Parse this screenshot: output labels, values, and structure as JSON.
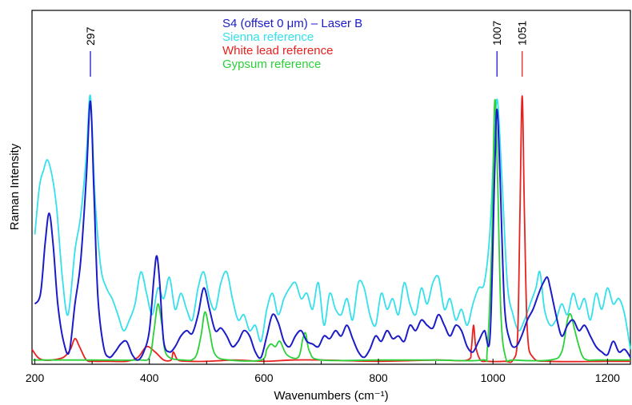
{
  "chart_data": {
    "type": "line",
    "title": "",
    "xlabel": "Wavenumbers (cm⁻¹)",
    "ylabel": "Raman Intensity",
    "xlim": [
      195,
      1240
    ],
    "ylim": [
      0,
      1.06
    ],
    "x_ticks": [
      200,
      400,
      600,
      800,
      1000,
      1200
    ],
    "grid": false,
    "legend_position": "top-center",
    "series": [
      {
        "name": "Sienna reference",
        "color": "#33e0ec",
        "x": [
          200,
          208,
          215,
          222,
          230,
          238,
          248,
          258,
          270,
          280,
          290,
          297,
          305,
          315,
          325,
          335,
          345,
          355,
          365,
          375,
          385,
          395,
          405,
          415,
          425,
          435,
          445,
          455,
          465,
          475,
          485,
          495,
          505,
          515,
          525,
          535,
          545,
          555,
          565,
          575,
          585,
          595,
          605,
          615,
          625,
          635,
          645,
          655,
          665,
          675,
          685,
          695,
          705,
          715,
          725,
          735,
          745,
          755,
          765,
          775,
          785,
          795,
          805,
          815,
          825,
          835,
          845,
          855,
          865,
          875,
          885,
          895,
          905,
          915,
          925,
          935,
          945,
          955,
          965,
          975,
          985,
          995,
          1003,
          1008,
          1015,
          1025,
          1035,
          1045,
          1055,
          1065,
          1075,
          1082,
          1090,
          1100,
          1110,
          1120,
          1130,
          1140,
          1150,
          1160,
          1170,
          1180,
          1190,
          1200,
          1210,
          1220,
          1230,
          1240
        ],
        "values": [
          0.48,
          0.66,
          0.72,
          0.76,
          0.7,
          0.58,
          0.32,
          0.18,
          0.42,
          0.55,
          0.78,
          1.0,
          0.62,
          0.36,
          0.28,
          0.24,
          0.18,
          0.12,
          0.16,
          0.22,
          0.34,
          0.26,
          0.18,
          0.28,
          0.24,
          0.32,
          0.2,
          0.26,
          0.2,
          0.16,
          0.28,
          0.34,
          0.24,
          0.2,
          0.3,
          0.34,
          0.24,
          0.16,
          0.18,
          0.12,
          0.14,
          0.08,
          0.2,
          0.26,
          0.18,
          0.24,
          0.28,
          0.3,
          0.24,
          0.26,
          0.2,
          0.3,
          0.14,
          0.26,
          0.2,
          0.18,
          0.24,
          0.16,
          0.3,
          0.28,
          0.18,
          0.14,
          0.26,
          0.2,
          0.24,
          0.18,
          0.3,
          0.22,
          0.18,
          0.28,
          0.22,
          0.3,
          0.32,
          0.2,
          0.24,
          0.16,
          0.2,
          0.14,
          0.22,
          0.28,
          0.3,
          0.5,
          0.88,
          0.98,
          0.72,
          0.3,
          0.18,
          0.12,
          0.16,
          0.22,
          0.28,
          0.34,
          0.2,
          0.14,
          0.16,
          0.22,
          0.18,
          0.26,
          0.2,
          0.24,
          0.16,
          0.26,
          0.2,
          0.28,
          0.22,
          0.24,
          0.18,
          0.05
        ]
      },
      {
        "name": "White lead reference",
        "color": "#e8211e",
        "x": [
          195,
          205,
          215,
          230,
          250,
          262,
          270,
          278,
          290,
          305,
          330,
          360,
          380,
          395,
          410,
          425,
          438,
          442,
          450,
          470,
          500,
          550,
          600,
          650,
          700,
          800,
          900,
          955,
          962,
          966,
          970,
          978,
          990,
          1020,
          1035,
          1043,
          1047,
          1051,
          1055,
          1060,
          1070,
          1100,
          1200,
          1240
        ],
        "values": [
          0.05,
          0.02,
          0.01,
          0.01,
          0.02,
          0.05,
          0.09,
          0.06,
          0.01,
          0.005,
          0.005,
          0.005,
          0.02,
          0.06,
          0.04,
          0.01,
          0.01,
          0.04,
          0.01,
          0.005,
          0.005,
          0.01,
          0.005,
          0.01,
          0.01,
          0.005,
          0.01,
          0.01,
          0.05,
          0.14,
          0.06,
          0.01,
          0.005,
          0.005,
          0.01,
          0.1,
          0.55,
          1.0,
          0.55,
          0.12,
          0.02,
          0.005,
          0.005,
          0.005
        ]
      },
      {
        "name": "Gypsum reference",
        "color": "#2cd13a",
        "x": [
          195,
          300,
          380,
          400,
          408,
          415,
          422,
          430,
          460,
          480,
          490,
          497,
          505,
          515,
          540,
          595,
          605,
          612,
          620,
          628,
          640,
          660,
          668,
          673,
          680,
          700,
          800,
          900,
          980,
          990,
          998,
          1003,
          1008,
          1014,
          1022,
          1035,
          1100,
          1120,
          1130,
          1136,
          1143,
          1155,
          1165,
          1180,
          1240
        ],
        "values": [
          0.01,
          0.01,
          0.01,
          0.02,
          0.12,
          0.22,
          0.14,
          0.03,
          0.01,
          0.02,
          0.1,
          0.19,
          0.12,
          0.03,
          0.01,
          0.01,
          0.05,
          0.07,
          0.06,
          0.08,
          0.03,
          0.02,
          0.09,
          0.11,
          0.04,
          0.01,
          0.01,
          0.01,
          0.01,
          0.05,
          0.45,
          0.98,
          0.7,
          0.18,
          0.02,
          0.01,
          0.01,
          0.04,
          0.16,
          0.18,
          0.12,
          0.03,
          0.01,
          0.01,
          0.01
        ]
      },
      {
        "name": "S4 (offset 0 μm) – Laser B",
        "color": "#1b1bc8",
        "x": [
          200,
          210,
          218,
          225,
          232,
          240,
          250,
          260,
          270,
          280,
          290,
          297,
          303,
          310,
          320,
          330,
          340,
          350,
          360,
          370,
          380,
          390,
          400,
          408,
          413,
          418,
          425,
          435,
          445,
          455,
          465,
          475,
          485,
          495,
          505,
          515,
          525,
          535,
          545,
          555,
          565,
          575,
          585,
          595,
          605,
          615,
          625,
          635,
          645,
          655,
          665,
          675,
          685,
          695,
          705,
          715,
          725,
          735,
          745,
          755,
          765,
          775,
          785,
          795,
          805,
          815,
          825,
          835,
          845,
          855,
          865,
          875,
          885,
          895,
          905,
          915,
          925,
          935,
          945,
          955,
          965,
          975,
          985,
          995,
          1003,
          1007,
          1012,
          1020,
          1030,
          1040,
          1050,
          1060,
          1070,
          1080,
          1088,
          1095,
          1100,
          1110,
          1120,
          1130,
          1140,
          1150,
          1160,
          1170,
          1180,
          1190,
          1200,
          1210,
          1220,
          1230,
          1240
        ],
        "values": [
          0.22,
          0.26,
          0.45,
          0.56,
          0.44,
          0.22,
          0.08,
          0.04,
          0.22,
          0.38,
          0.7,
          0.98,
          0.65,
          0.25,
          0.06,
          0.02,
          0.04,
          0.07,
          0.08,
          0.03,
          0.01,
          0.04,
          0.12,
          0.32,
          0.4,
          0.3,
          0.08,
          0.04,
          0.06,
          0.1,
          0.12,
          0.11,
          0.18,
          0.28,
          0.2,
          0.12,
          0.13,
          0.1,
          0.06,
          0.08,
          0.12,
          0.1,
          0.04,
          0.02,
          0.1,
          0.18,
          0.15,
          0.08,
          0.06,
          0.1,
          0.12,
          0.08,
          0.07,
          0.06,
          0.1,
          0.09,
          0.12,
          0.1,
          0.14,
          0.09,
          0.04,
          0.02,
          0.05,
          0.1,
          0.08,
          0.12,
          0.09,
          0.1,
          0.08,
          0.14,
          0.12,
          0.16,
          0.14,
          0.13,
          0.18,
          0.14,
          0.1,
          0.14,
          0.12,
          0.06,
          0.04,
          0.08,
          0.12,
          0.1,
          0.72,
          0.95,
          0.72,
          0.22,
          0.08,
          0.06,
          0.1,
          0.16,
          0.2,
          0.26,
          0.3,
          0.32,
          0.28,
          0.18,
          0.1,
          0.14,
          0.16,
          0.12,
          0.14,
          0.1,
          0.06,
          0.04,
          0.03,
          0.08,
          0.04,
          0.05,
          0.02
        ]
      }
    ],
    "peak_annotations": [
      {
        "label": "297",
        "x": 297,
        "color": "#1b1bc8"
      },
      {
        "label": "1007",
        "x": 1007,
        "color": "#1b1bc8"
      },
      {
        "label": "1051",
        "x": 1051,
        "color": "#e8211e"
      }
    ]
  }
}
